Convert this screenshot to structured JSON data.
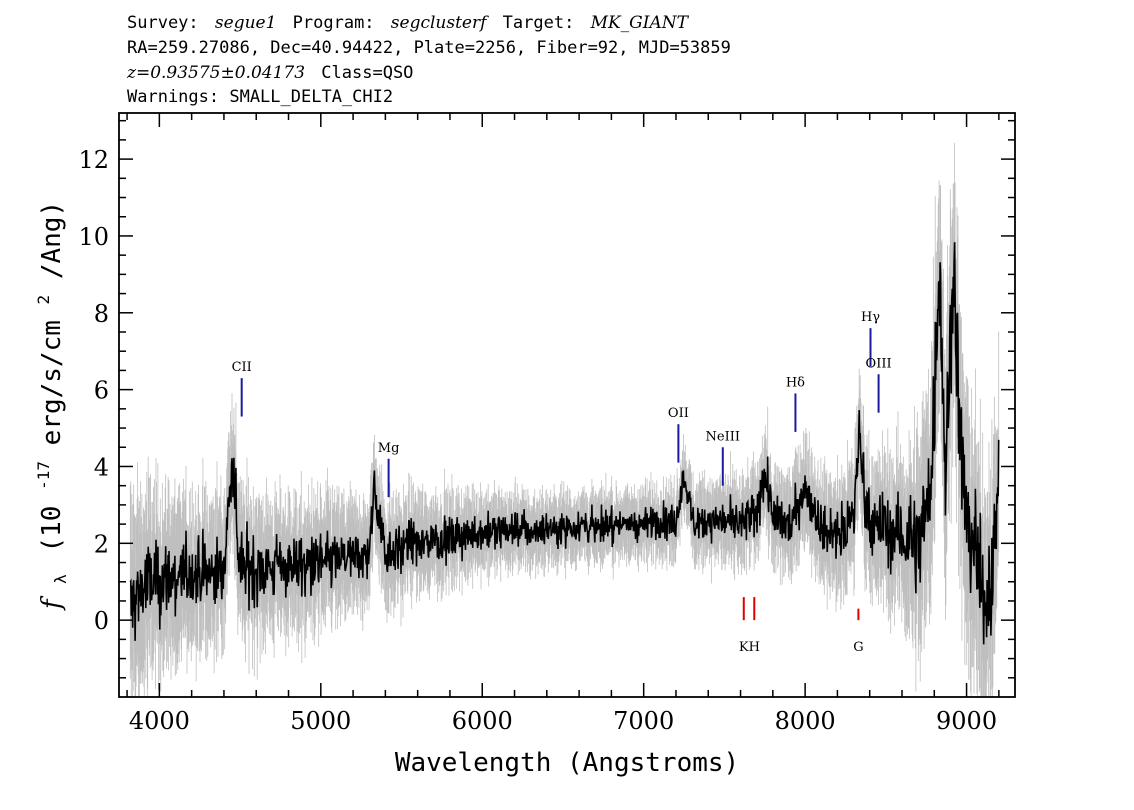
{
  "header": {
    "line1": {
      "survey_label": "Survey:",
      "survey": "segue1",
      "program_label": "Program:",
      "program": "segclusterf",
      "target_label": "Target:",
      "target": "MK_GIANT"
    },
    "line2": "RA=259.27086, Dec=40.94422, Plate=2256, Fiber=92, MJD=53859",
    "line3": {
      "z": "z=0.93575±0.04173",
      "class": "Class=QSO"
    },
    "line4": "Warnings: SMALL_DELTA_CHI2"
  },
  "chart_data": {
    "type": "line",
    "xlabel": "Wavelength (Angstroms)",
    "ylabel": "f_λ (10^-17 erg/s/cm^2/Ang)",
    "ylabel_parts": {
      "f": "f",
      "lambda": "λ",
      "a": "(10",
      "exp1": "-17",
      "b": " erg/s/cm",
      "exp2": "2",
      "c": "/Ang)"
    },
    "xlim": [
      3750,
      9300
    ],
    "ylim": [
      -2,
      13.2
    ],
    "xticks": [
      4000,
      5000,
      6000,
      7000,
      8000,
      9000
    ],
    "yticks": [
      0,
      2,
      4,
      6,
      8,
      10,
      12
    ],
    "colors": {
      "flux": "#000000",
      "error_band": "#bfbfbf",
      "emission_line": "#1a1aa0",
      "absorption_line": "#e00000"
    },
    "series": [
      {
        "role": "flux",
        "x": [
          3820,
          3900,
          4000,
          4100,
          4200,
          4300,
          4400,
          4450,
          4500,
          4600,
          4700,
          4800,
          4900,
          5000,
          5100,
          5200,
          5300,
          5330,
          5400,
          5500,
          5600,
          5700,
          5800,
          5900,
          6000,
          6100,
          6200,
          6300,
          6400,
          6500,
          6600,
          6700,
          6800,
          6900,
          7000,
          7100,
          7200,
          7250,
          7300,
          7400,
          7500,
          7600,
          7700,
          7750,
          7800,
          7900,
          8000,
          8100,
          8200,
          8300,
          8330,
          8400,
          8500,
          8600,
          8700,
          8780,
          8830,
          8870,
          8920,
          8960,
          9000,
          9050,
          9100,
          9150,
          9200
        ],
        "y": [
          0.3,
          0.9,
          1.0,
          1.1,
          1.2,
          1.2,
          1.3,
          4.2,
          1.4,
          1.4,
          1.3,
          1.5,
          1.4,
          1.5,
          1.6,
          1.6,
          1.7,
          3.4,
          1.8,
          1.9,
          2.0,
          2.1,
          2.1,
          2.2,
          2.3,
          2.3,
          2.4,
          2.3,
          2.4,
          2.4,
          2.5,
          2.4,
          2.5,
          2.5,
          2.5,
          2.6,
          2.5,
          3.8,
          2.6,
          2.6,
          2.6,
          2.5,
          2.7,
          3.9,
          2.6,
          2.5,
          3.5,
          2.4,
          2.3,
          2.6,
          4.8,
          2.5,
          2.4,
          2.2,
          2.0,
          3.5,
          9.0,
          4.0,
          9.5,
          4.5,
          3.0,
          2.0,
          0.5,
          1.2,
          3.5
        ]
      },
      {
        "role": "error",
        "x": [
          3820,
          4000,
          4200,
          4400,
          4600,
          4800,
          5000,
          5200,
          5400,
          5600,
          5800,
          6000,
          6200,
          6400,
          6600,
          6800,
          7000,
          7200,
          7400,
          7600,
          7800,
          8000,
          8200,
          8400,
          8600,
          8800,
          9000,
          9200
        ],
        "y": [
          2.5,
          2.0,
          1.8,
          1.7,
          1.6,
          1.5,
          1.4,
          1.3,
          1.2,
          1.1,
          1.0,
          0.9,
          0.85,
          0.8,
          0.8,
          0.8,
          0.8,
          0.85,
          0.9,
          1.0,
          1.1,
          1.2,
          1.3,
          1.5,
          1.8,
          3.0,
          3.0,
          2.5
        ]
      }
    ],
    "emission_lines": [
      {
        "name": "CII",
        "wavelength": 4510,
        "y_bottom": 5.3,
        "y_top": 6.3
      },
      {
        "name": "Mg",
        "wavelength": 5420,
        "y_bottom": 3.2,
        "y_top": 4.2
      },
      {
        "name": "OII",
        "wavelength": 7215,
        "y_bottom": 4.1,
        "y_top": 5.1
      },
      {
        "name": "NeIII",
        "wavelength": 7490,
        "y_bottom": 3.5,
        "y_top": 4.5
      },
      {
        "name": "Hδ",
        "wavelength": 7940,
        "y_bottom": 4.9,
        "y_top": 5.9
      },
      {
        "name": "Hγ",
        "wavelength": 8405,
        "y_bottom": 6.6,
        "y_top": 7.6
      },
      {
        "name": "OIII",
        "wavelength": 8455,
        "y_bottom": 5.4,
        "y_top": 6.4
      }
    ],
    "absorption_lines": [
      {
        "name": "K",
        "wavelength": 7620,
        "y_bottom": 0.0,
        "y_top": 0.6
      },
      {
        "name": "H",
        "wavelength": 7685,
        "y_bottom": 0.0,
        "y_top": 0.6
      },
      {
        "name": "G",
        "wavelength": 8330,
        "y_bottom": 0.0,
        "y_top": 0.3
      }
    ]
  }
}
